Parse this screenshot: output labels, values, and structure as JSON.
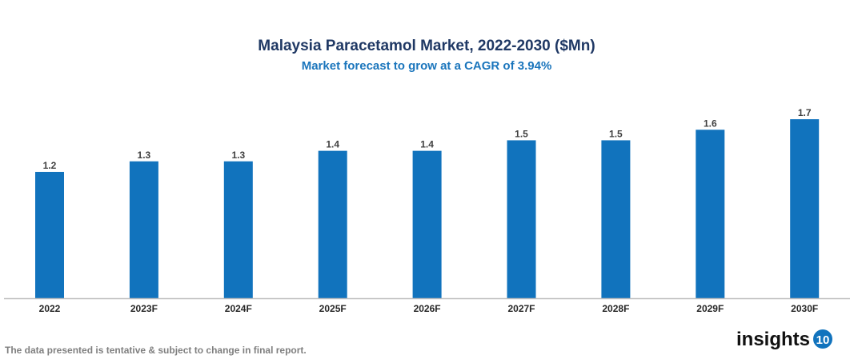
{
  "chart_data": {
    "type": "bar",
    "title": "Malaysia Paracetamol Market, 2022-2030 ($Mn)",
    "subtitle": "Market forecast to grow at a CAGR of 3.94%",
    "categories": [
      "2022",
      "2023F",
      "2024F",
      "2025F",
      "2026F",
      "2027F",
      "2028F",
      "2029F",
      "2030F"
    ],
    "values": [
      1.2,
      1.3,
      1.3,
      1.4,
      1.4,
      1.5,
      1.5,
      1.6,
      1.7
    ],
    "xlabel": "",
    "ylabel": "",
    "ylim": [
      0,
      1.8
    ],
    "grid": false,
    "bar_color": "#1173bd"
  },
  "footer": {
    "disclaimer": "The data presented is tentative & subject to change in final report.",
    "logo_text": "insights",
    "logo_badge": "10"
  }
}
